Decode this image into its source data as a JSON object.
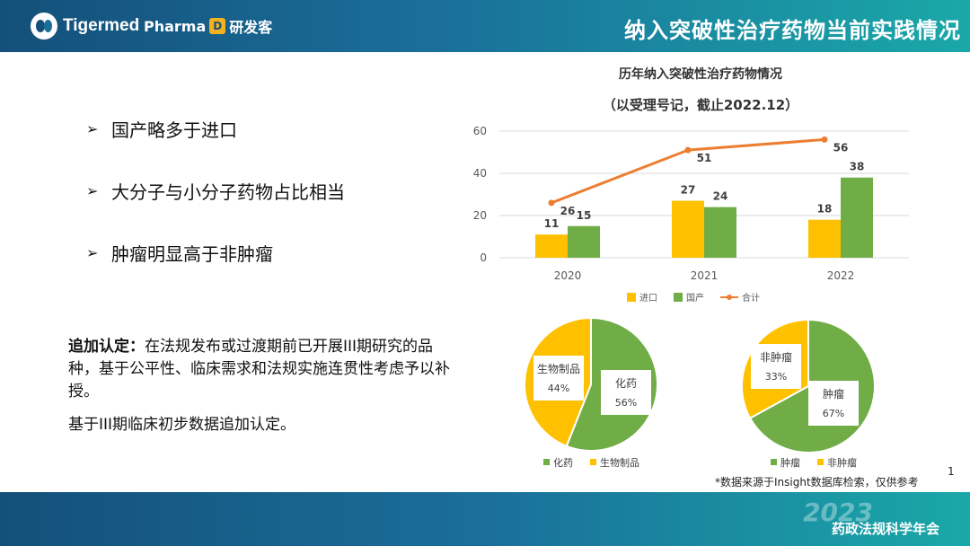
{
  "header": {
    "logo_tigermed": "Tigermed",
    "logo_pharma": "Pharma",
    "logo_pharma_box": "D",
    "logo_pharma_cn": "研发客",
    "title": "纳入突破性治疗药物当前实践情况"
  },
  "bullets": [
    "国产略多于进口",
    "大分子与小分子药物占比相当",
    "肿瘤明显高于非肿瘤"
  ],
  "bullet_glyph": "➢",
  "para": {
    "lead": "追加认定：",
    "text": "在法规发布或过渡期前已开展III期研究的品种，基于公平性、临床需求和法规实施连贯性考虑予以补授。"
  },
  "para2": "基于III期临床初步数据追加认定。",
  "chart_titles": [
    "历年纳入突破性治疗药物情况",
    "（以受理号记，截止2022.12）"
  ],
  "chart_data": [
    {
      "type": "bar",
      "title": "历年纳入突破性治疗药物情况",
      "subtitle": "（以受理号记，截止2022.12）",
      "categories": [
        "2020",
        "2021",
        "2022"
      ],
      "series": [
        {
          "name": "进口",
          "type": "bar",
          "values": [
            11,
            27,
            18
          ],
          "color": "#ffc000"
        },
        {
          "name": "国产",
          "type": "bar",
          "values": [
            15,
            24,
            38
          ],
          "color": "#70ad47"
        },
        {
          "name": "合计",
          "type": "line",
          "values": [
            26,
            51,
            56
          ],
          "color": "#ed7d31"
        }
      ],
      "ylim": [
        0,
        60
      ],
      "yticks": [
        0,
        20,
        40,
        60
      ],
      "grid": true,
      "legend": "bottom"
    },
    {
      "type": "pie",
      "slices": [
        {
          "name": "化药",
          "value": 56,
          "label": "56%",
          "color": "#70ad47"
        },
        {
          "name": "生物制品",
          "value": 44,
          "label": "44%",
          "color": "#ffc000"
        }
      ],
      "legend": "bottom"
    },
    {
      "type": "pie",
      "slices": [
        {
          "name": "肿瘤",
          "value": 67,
          "label": "67%",
          "color": "#70ad47"
        },
        {
          "name": "非肿瘤",
          "value": 33,
          "label": "33%",
          "color": "#ffc000"
        }
      ],
      "legend": "bottom"
    }
  ],
  "source_note": "*数据来源于Insight数据库检索，仅供参考",
  "page_number": "1",
  "footer": {
    "year": "2023",
    "text": "药政法规科学年会"
  }
}
